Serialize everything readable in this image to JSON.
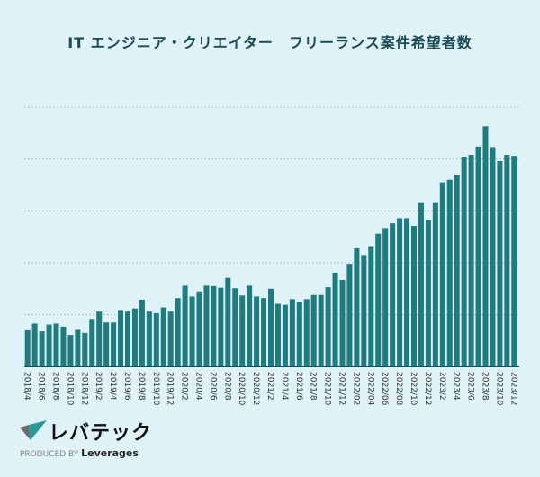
{
  "chart_data": {
    "type": "bar",
    "title": "IT エンジニア・クリエイター　フリーランス案件希望者数",
    "xlabel": "",
    "ylabel": "",
    "ylim": [
      0,
      5
    ],
    "grid": true,
    "y_tick_labels_shown": false,
    "bar_color": "#1e7b7e",
    "categories": [
      "2018/4",
      "2018/5",
      "2018/6",
      "2018/7",
      "2018/8",
      "2018/9",
      "2018/10",
      "2018/11",
      "2018/12",
      "2019/1",
      "2019/2",
      "2019/3",
      "2019/4",
      "2019/5",
      "2019/6",
      "2019/7",
      "2019/8",
      "2019/9",
      "2019/10",
      "2019/11",
      "2019/12",
      "2020/1",
      "2020/2",
      "2020/3",
      "2020/4",
      "2020/5",
      "2020/6",
      "2020/7",
      "2020/8",
      "2020/9",
      "2020/10",
      "2020/11",
      "2020/12",
      "2021/1",
      "2021/2",
      "2021/3",
      "2021/4",
      "2021/5",
      "2021/6",
      "2021/7",
      "2021/8",
      "2021/9",
      "2021/10",
      "2021/11",
      "2021/12",
      "2022/01",
      "2022/02",
      "2022/03",
      "2022/04",
      "2022/05",
      "2022/06",
      "2022/07",
      "2022/08",
      "2022/09",
      "2022/10",
      "2022/11",
      "2022/12",
      "2023/1",
      "2023/2",
      "2023/3",
      "2023/4",
      "2023/5",
      "2023/6",
      "2023/7",
      "2023/8",
      "2023/9",
      "2023/10",
      "2023/11",
      "2023/12"
    ],
    "tick_labels": [
      "2018/4",
      "2018/6",
      "2018/8",
      "2018/10",
      "2018/12",
      "2019/2",
      "2019/4",
      "2019/6",
      "2019/8",
      "2019/10",
      "2019/12",
      "2020/2",
      "2020/4",
      "2020/6",
      "2020/8",
      "2020/10",
      "2020/12",
      "2021/2",
      "2021/4",
      "2021/6",
      "2021/8",
      "2021/10",
      "2021/12",
      "2022/02",
      "2022/04",
      "2022/06",
      "2022/08",
      "2022/10",
      "2022/12",
      "2023/2",
      "2023/4",
      "2023/6",
      "2023/8",
      "2023/10",
      "2023/12"
    ],
    "values": [
      0.7,
      0.83,
      0.68,
      0.81,
      0.83,
      0.77,
      0.61,
      0.71,
      0.65,
      0.92,
      1.06,
      0.85,
      0.85,
      1.09,
      1.06,
      1.12,
      1.29,
      1.06,
      1.03,
      1.14,
      1.06,
      1.32,
      1.56,
      1.35,
      1.45,
      1.56,
      1.55,
      1.52,
      1.71,
      1.51,
      1.37,
      1.56,
      1.35,
      1.32,
      1.5,
      1.21,
      1.19,
      1.3,
      1.24,
      1.3,
      1.38,
      1.38,
      1.53,
      1.81,
      1.67,
      1.98,
      2.28,
      2.15,
      2.32,
      2.56,
      2.67,
      2.76,
      2.86,
      2.86,
      2.71,
      3.15,
      2.82,
      3.15,
      3.55,
      3.6,
      3.69,
      4.04,
      4.08,
      4.24,
      4.63,
      4.23,
      3.96,
      4.08,
      4.06
    ]
  },
  "colors": {
    "background": "#dff2f8",
    "title": "#1b4a53",
    "bar": "#1e7b7e"
  },
  "branding": {
    "logo_text": "レバテック",
    "produced_by": "PRODUCED BY",
    "company": "Leverages"
  }
}
